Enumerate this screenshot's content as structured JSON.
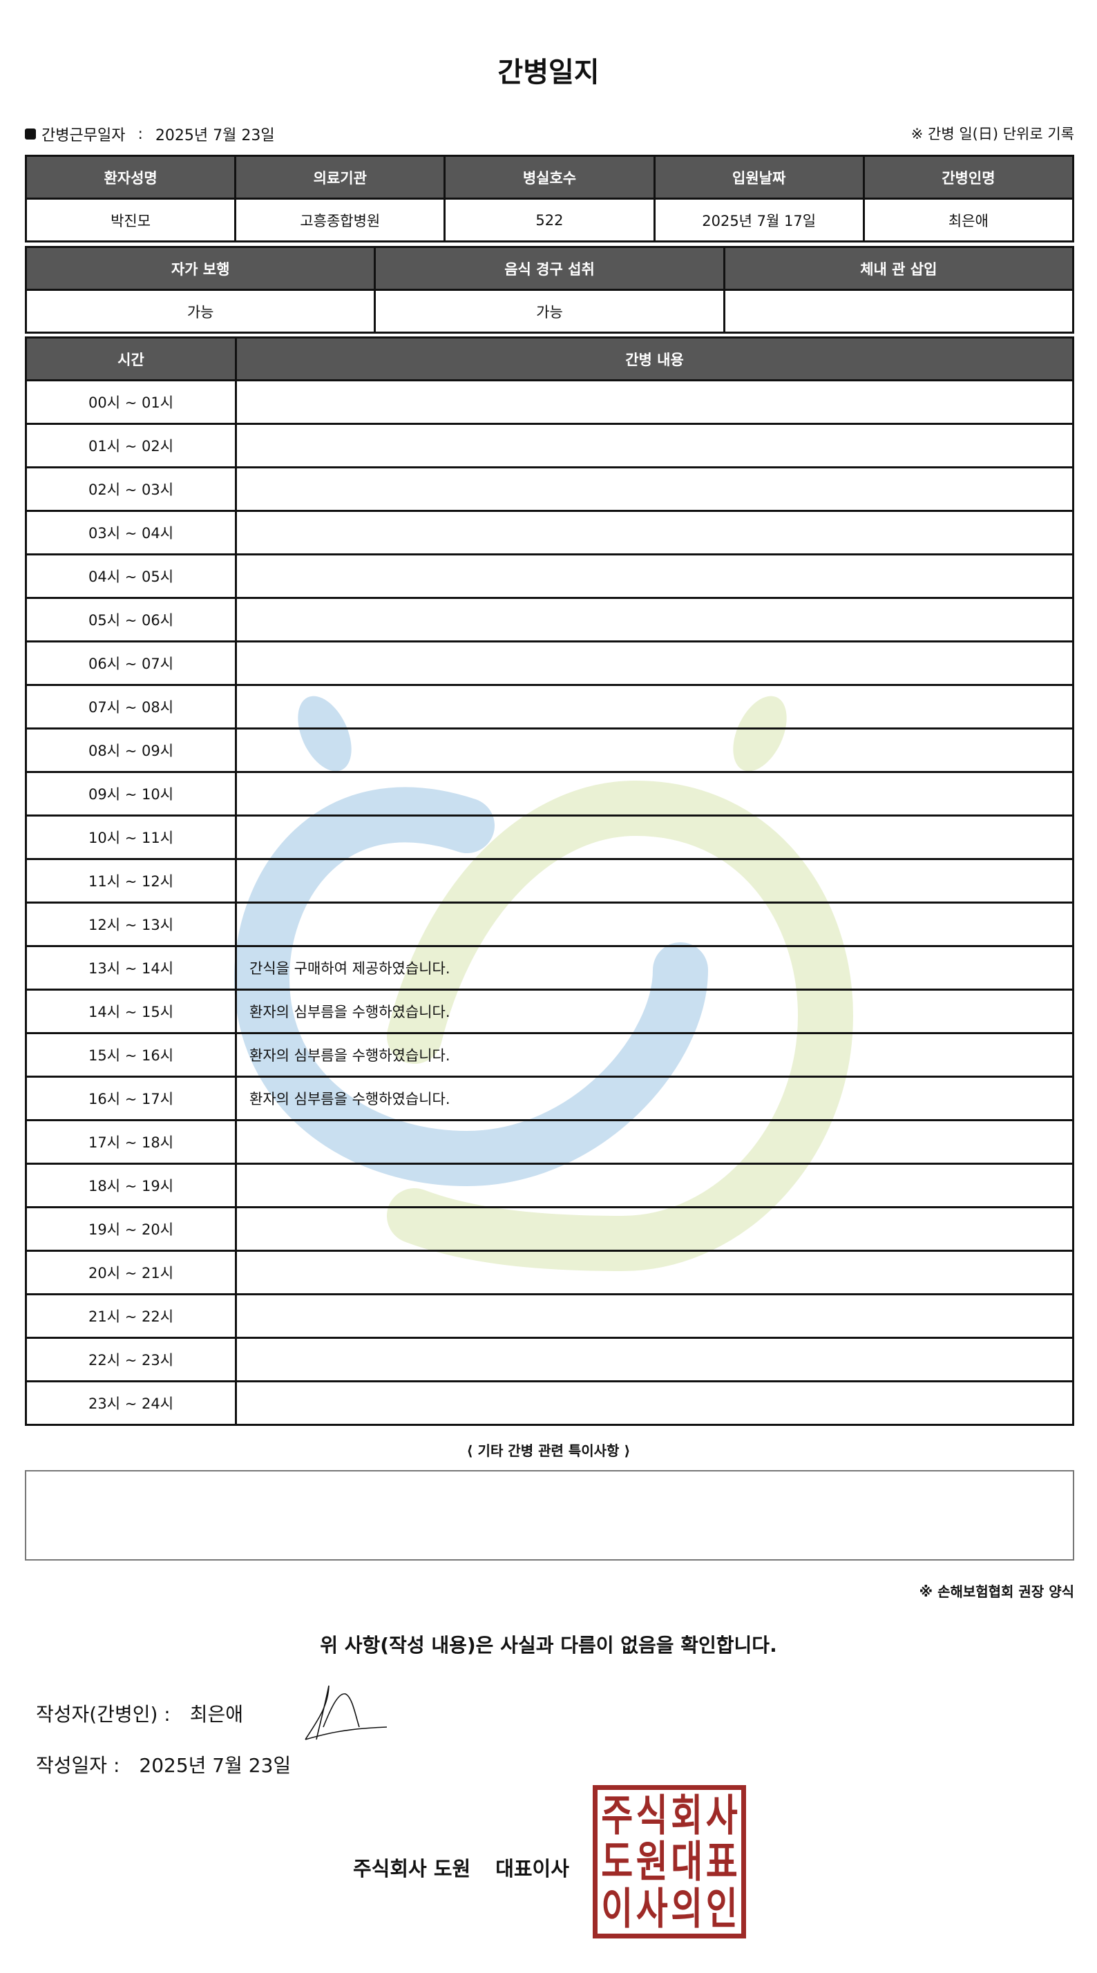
{
  "title": "간병일지",
  "work_date": {
    "label": "간병근무일자",
    "sep": ":",
    "value": "2025년 7월 23일"
  },
  "note_top": "※ 간병 일(日) 단위로 기록",
  "info_table": {
    "headers": [
      "환자성명",
      "의료기관",
      "병실호수",
      "입원날짜",
      "간병인명"
    ],
    "values": [
      "박진모",
      "고흥종합병원",
      "522",
      "2025년 7월 17일",
      "최은애"
    ]
  },
  "status_table": {
    "headers": [
      "자가 보행",
      "음식 경구 섭취",
      "체내 관 삽입"
    ],
    "values": [
      "가능",
      "가능",
      ""
    ]
  },
  "log_table": {
    "headers": [
      "시간",
      "간병 내용"
    ],
    "rows": [
      {
        "time": "00시 ~ 01시",
        "content": ""
      },
      {
        "time": "01시 ~ 02시",
        "content": ""
      },
      {
        "time": "02시 ~ 03시",
        "content": ""
      },
      {
        "time": "03시 ~ 04시",
        "content": ""
      },
      {
        "time": "04시 ~ 05시",
        "content": ""
      },
      {
        "time": "05시 ~ 06시",
        "content": ""
      },
      {
        "time": "06시 ~ 07시",
        "content": ""
      },
      {
        "time": "07시 ~ 08시",
        "content": ""
      },
      {
        "time": "08시 ~ 09시",
        "content": ""
      },
      {
        "time": "09시 ~ 10시",
        "content": ""
      },
      {
        "time": "10시 ~ 11시",
        "content": ""
      },
      {
        "time": "11시 ~ 12시",
        "content": ""
      },
      {
        "time": "12시 ~ 13시",
        "content": ""
      },
      {
        "time": "13시 ~ 14시",
        "content": "간식을 구매하여 제공하였습니다."
      },
      {
        "time": "14시 ~ 15시",
        "content": "환자의 심부름을 수행하였습니다."
      },
      {
        "time": "15시 ~ 16시",
        "content": "환자의 심부름을 수행하였습니다."
      },
      {
        "time": "16시 ~ 17시",
        "content": "환자의 심부름을 수행하였습니다."
      },
      {
        "time": "17시 ~ 18시",
        "content": ""
      },
      {
        "time": "18시 ~ 19시",
        "content": ""
      },
      {
        "time": "19시 ~ 20시",
        "content": ""
      },
      {
        "time": "20시 ~ 21시",
        "content": ""
      },
      {
        "time": "21시 ~ 22시",
        "content": ""
      },
      {
        "time": "22시 ~ 23시",
        "content": ""
      },
      {
        "time": "23시 ~ 24시",
        "content": ""
      }
    ]
  },
  "etc": {
    "label": "⟨ 기타 간병 관련 특이사항 ⟩",
    "value": ""
  },
  "note_bottom": "※ 손해보험협회 권장 양식",
  "confirm": "위 사항(작성 내용)은 사실과 다름이 없음을 확인합니다.",
  "writer": {
    "label": "작성자(간병인) :",
    "name": "최은애"
  },
  "written_date": {
    "label": "작성일자 :",
    "value": "2025년 7월 23일"
  },
  "company": {
    "name": "주식회사 도원",
    "role": "대표이사"
  },
  "stamp": {
    "text": "주식회사도원대표이사의인",
    "color": "#9e2a27"
  },
  "colors": {
    "header_bg": "#575757",
    "watermark_blue": "#c9dff0",
    "watermark_green": "#eaf1d4"
  }
}
